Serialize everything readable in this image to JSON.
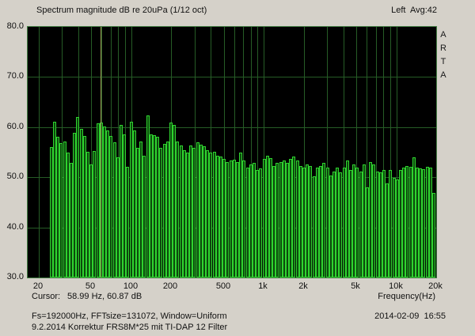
{
  "header": {
    "title": "Spectrum magnitude dB re 20uPa (1/12 oct)",
    "channel_info": "Left  Avg:42"
  },
  "branding": {
    "letters": [
      "A",
      "R",
      "T",
      "A"
    ]
  },
  "status_row": {
    "cursor_label": "Cursor:",
    "cursor_value": "58.99 Hz, 60.87 dB",
    "x_axis_label": "Frequency(Hz)"
  },
  "footer": {
    "line1_left": "Fs=192000Hz, FFTsize=131072, Window=Uniform",
    "line1_right": "2014-02-09  16:55",
    "line2": "9.2.2014 Korrektur FRS8M*25 mit TI-DAP 12 Filter"
  },
  "chart_data": {
    "type": "bar",
    "title": "Spectrum magnitude dB re 20uPa (1/12 oct)",
    "xlabel": "Frequency(Hz)",
    "ylabel": "dB re 20uPa",
    "x_scale": "log",
    "xlim_hz": [
      16.6,
      20000
    ],
    "ylim": [
      30,
      80
    ],
    "grid": true,
    "y_ticks": [
      {
        "db": 80,
        "label": "80.0"
      },
      {
        "db": 70,
        "label": "70.0"
      },
      {
        "db": 60,
        "label": "60.0"
      },
      {
        "db": 50,
        "label": "50.0"
      },
      {
        "db": 40,
        "label": "40.0"
      },
      {
        "db": 30,
        "label": "30.0"
      }
    ],
    "y_gridlines_db": [
      70,
      60,
      50,
      40
    ],
    "x_ticks": [
      {
        "hz": 20,
        "label": "20"
      },
      {
        "hz": 50,
        "label": "50"
      },
      {
        "hz": 100,
        "label": "100"
      },
      {
        "hz": 200,
        "label": "200"
      },
      {
        "hz": 500,
        "label": "500"
      },
      {
        "hz": 1000,
        "label": "1k"
      },
      {
        "hz": 2000,
        "label": "2k"
      },
      {
        "hz": 5000,
        "label": "5k"
      },
      {
        "hz": 10000,
        "label": "10k"
      },
      {
        "hz": 20000,
        "label": "20k"
      }
    ],
    "x_gridlines_hz": [
      20,
      30,
      40,
      50,
      60,
      70,
      80,
      90,
      100,
      200,
      300,
      400,
      500,
      600,
      700,
      800,
      900,
      1000,
      2000,
      3000,
      4000,
      5000,
      6000,
      7000,
      8000,
      9000,
      10000,
      20000
    ],
    "bands_start_hz": 25,
    "bands_per_octave": 12,
    "values_db": [
      56.0,
      61.0,
      58.0,
      56.8,
      57.1,
      55.0,
      52.8,
      58.8,
      62.0,
      59.7,
      58.3,
      55.1,
      52.6,
      55.3,
      60.8,
      60.9,
      60.1,
      59.4,
      58.3,
      57.0,
      53.9,
      60.4,
      58.5,
      52.1,
      61.1,
      59.3,
      55.9,
      57.2,
      54.3,
      62.4,
      58.6,
      58.4,
      58.0,
      55.9,
      56.7,
      57.2,
      60.9,
      60.4,
      57.1,
      56.4,
      55.4,
      54.9,
      56.4,
      55.9,
      57.0,
      56.5,
      56.2,
      55.4,
      54.9,
      55.1,
      54.3,
      54.1,
      53.6,
      53.0,
      53.3,
      53.5,
      53.0,
      55.0,
      53.3,
      52.0,
      52.5,
      52.8,
      51.5,
      51.7,
      53.6,
      54.3,
      53.8,
      52.3,
      52.8,
      53.0,
      53.3,
      52.8,
      53.6,
      54.1,
      53.3,
      52.3,
      52.0,
      52.5,
      52.3,
      50.2,
      52.0,
      52.3,
      52.8,
      52.0,
      50.4,
      51.2,
      52.0,
      50.9,
      52.0,
      53.3,
      51.5,
      52.5,
      52.0,
      51.2,
      52.5,
      48.0,
      53.0,
      52.5,
      51.2,
      50.9,
      51.5,
      48.8,
      51.5,
      49.9,
      49.6,
      51.5,
      52.0,
      52.3,
      52.1,
      54.0,
      52.0,
      51.8,
      51.6,
      52.1,
      52.0,
      46.8
    ],
    "cursor": {
      "hz": 58.99,
      "db": 60.87
    },
    "colors": {
      "window_bg": "#d5d1c9",
      "plot_bg": "#000000",
      "bar_edge": "#2fd32f",
      "bar_fill": "#0c4a0c",
      "grid": "#265c26",
      "plot_border": "#437d43",
      "cursor_line": "#9b9b55",
      "text": "#111111"
    }
  }
}
